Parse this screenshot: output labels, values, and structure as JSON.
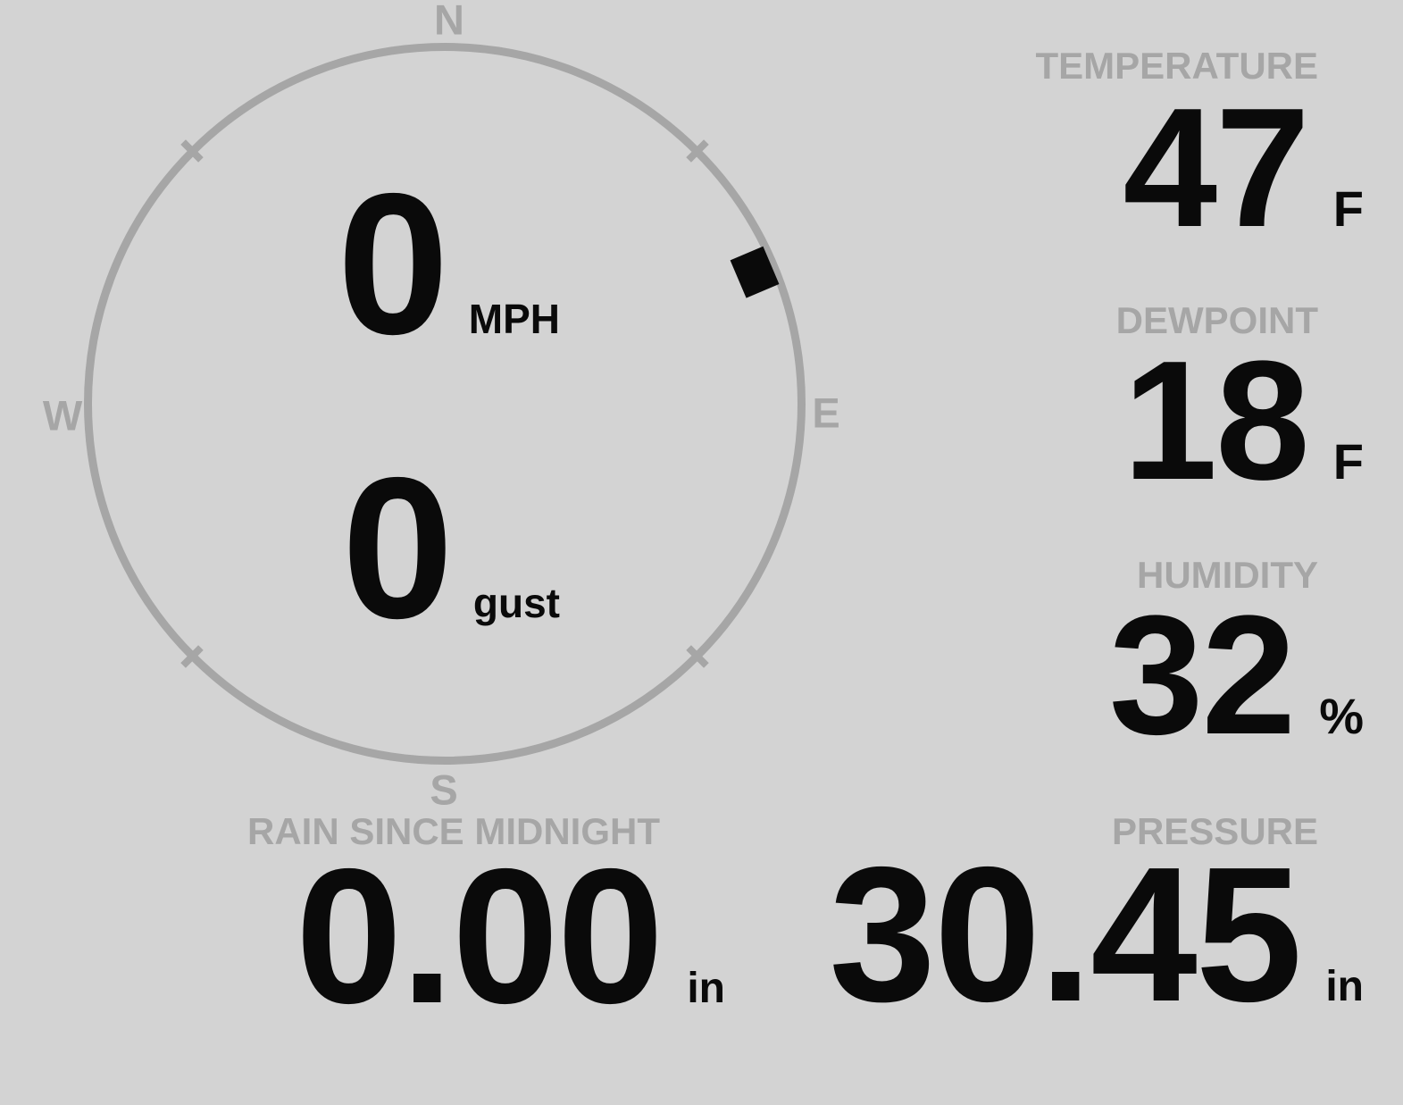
{
  "colors": {
    "background": "#d3d3d3",
    "muted": "#a6a6a6",
    "ink": "#0a0a0a"
  },
  "wind": {
    "speed_value": "0",
    "speed_unit": "MPH",
    "gust_value": "0",
    "gust_unit": "gust",
    "direction_degrees": 67,
    "compass_labels": {
      "north": "N",
      "east": "E",
      "south": "S",
      "west": "W"
    }
  },
  "temperature": {
    "label": "TEMPERATURE",
    "value": "47",
    "unit": "F"
  },
  "dewpoint": {
    "label": "DEWPOINT",
    "value": "18",
    "unit": "F"
  },
  "humidity": {
    "label": "HUMIDITY",
    "value": "32",
    "unit": "%"
  },
  "rain": {
    "label": "RAIN SINCE MIDNIGHT",
    "value": "0.00",
    "unit": "in"
  },
  "pressure": {
    "label": "PRESSURE",
    "value": "30.45",
    "unit": "in"
  }
}
